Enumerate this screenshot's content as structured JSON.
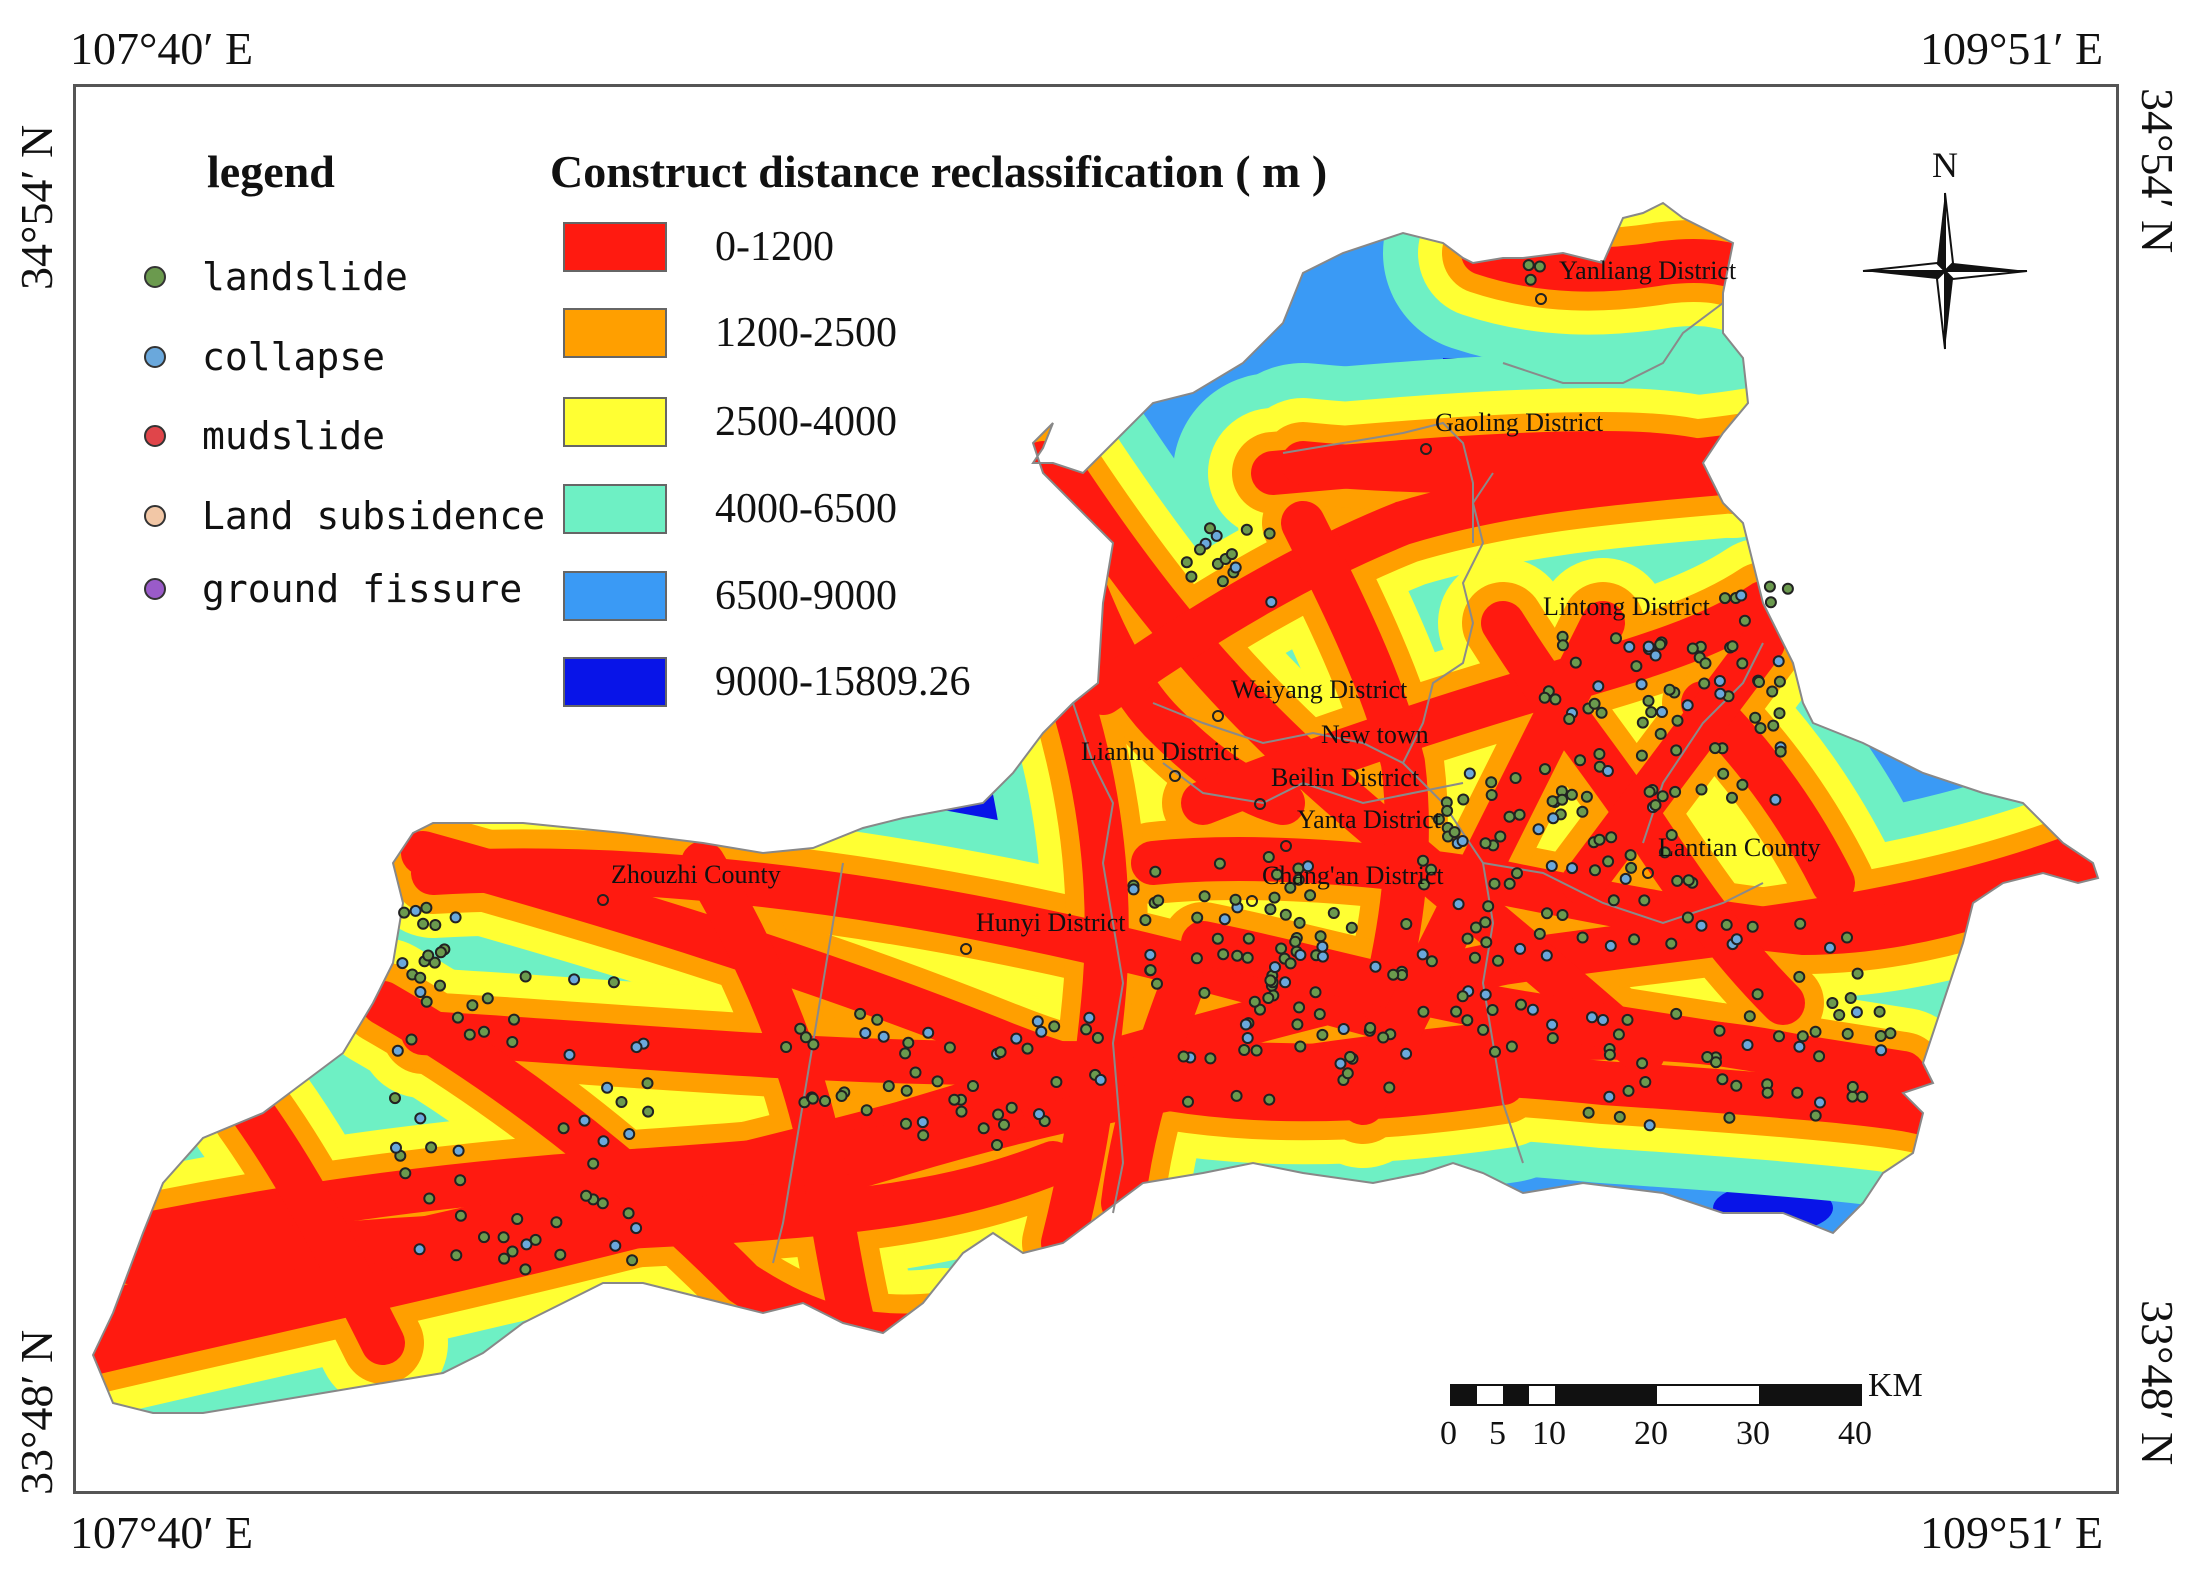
{
  "coordinates": {
    "top_left": "107°40′ E",
    "top_right": "109°51′ E",
    "bottom_left": "107°40′ E",
    "bottom_right": "109°51′ E",
    "left_top": "34°54′ N",
    "left_bottom": "33°48′ N",
    "right_top": "34°54′ N",
    "right_bottom": "33°48′ N"
  },
  "legend": {
    "title": "legend",
    "items": [
      {
        "label": "landslide",
        "color": "#6b9a4e"
      },
      {
        "label": "collapse",
        "color": "#6aa8dc"
      },
      {
        "label": "mudslide",
        "color": "#e0454a"
      },
      {
        "label": "Land subsidence",
        "color": "#f2c7a6"
      },
      {
        "label": "ground fissure",
        "color": "#9a5bc9"
      }
    ]
  },
  "classification": {
    "title": "Construct distance reclassification ( m )",
    "classes": [
      {
        "label": "0-1200",
        "color": "#ff1a10"
      },
      {
        "label": "1200-2500",
        "color": "#ff9f00"
      },
      {
        "label": "2500-4000",
        "color": "#ffff33"
      },
      {
        "label": "4000-6500",
        "color": "#6ef0c4"
      },
      {
        "label": "6500-9000",
        "color": "#3a9af5"
      },
      {
        "label": "9000-15809.26",
        "color": "#0814e8"
      }
    ]
  },
  "north_arrow": {
    "label": "N",
    "icon": "compass-rose-icon"
  },
  "scale_bar": {
    "unit": "KM",
    "ticks": [
      "0",
      "5",
      "10",
      "20",
      "30",
      "40"
    ]
  },
  "place_labels": [
    "Yanliang District",
    "Gaoling District",
    "Lintong District",
    "Weiyang District",
    "New town",
    "Lianhu District",
    "Beilin District",
    "Yanta District",
    "Lantian County",
    "Chang'an District",
    "Zhouzhi County",
    "Hunyi District"
  ]
}
